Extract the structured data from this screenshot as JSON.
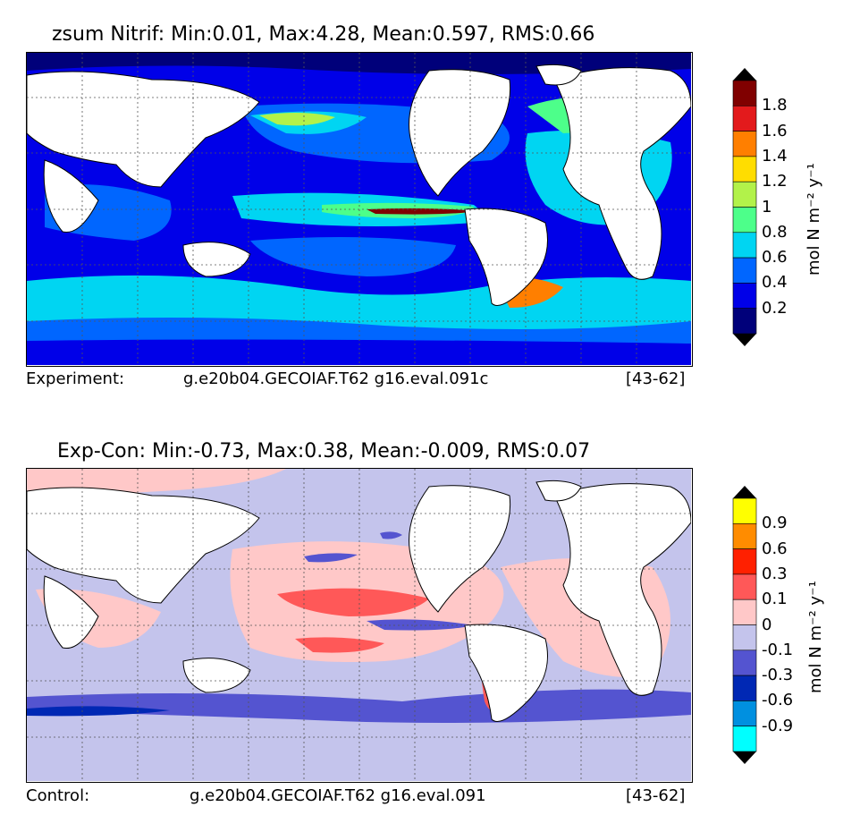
{
  "top": {
    "title": "zsum Nitrif: Min:0.01, Max:4.28, Mean:0.597, RMS:0.66",
    "footer_left": "Experiment:",
    "footer_mid": "g.e20b04.GECOIAF.T62 g16.eval.091c",
    "footer_right": "[43-62]",
    "colorbar": {
      "unit": "mol N m⁻² y⁻¹",
      "labels": [
        "1.8",
        "1.6",
        "1.4",
        "1.2",
        "1",
        "0.8",
        "0.6",
        "0.4",
        "0.2"
      ],
      "colors": [
        "#800000",
        "#e31a1c",
        "#ff7f00",
        "#ffdd00",
        "#b2f24a",
        "#4dff8a",
        "#00d5f2",
        "#0066ff",
        "#0000e8",
        "#00007a"
      ],
      "over_color": "#000000",
      "under_color": "#000000"
    },
    "map_colors": {
      "ocean_base": "#0000e8",
      "low": "#00007a",
      "mid": "#0066ff",
      "mid_high": "#00d5f2",
      "high": "#4dff8a",
      "higher": "#b2f24a",
      "peak": "#800000",
      "land": "#ffffff"
    }
  },
  "bottom": {
    "title": "Exp-Con: Min:-0.73, Max:0.38, Mean:-0.009, RMS:0.07",
    "footer_left": "Control:",
    "footer_mid": "g.e20b04.GECOIAF.T62 g16.eval.091",
    "footer_right": "[43-62]",
    "colorbar": {
      "unit": "mol N m⁻² y⁻¹",
      "labels": [
        "0.9",
        "0.6",
        "0.3",
        "0.1",
        "0",
        "-0.1",
        "-0.3",
        "-0.6",
        "-0.9"
      ],
      "colors": [
        "#ffff00",
        "#ff8c00",
        "#ff2000",
        "#ff5858",
        "#ffc8c8",
        "#c4c4ec",
        "#5454d0",
        "#0028b4",
        "#0090e0",
        "#00ffff"
      ],
      "over_color": "#000000",
      "under_color": "#000000"
    },
    "map_colors": {
      "ocean_base": "#c4c4ec",
      "pos": "#ffc8c8",
      "pos2": "#ff5858",
      "neg": "#5454d0",
      "land": "#ffffff"
    }
  }
}
